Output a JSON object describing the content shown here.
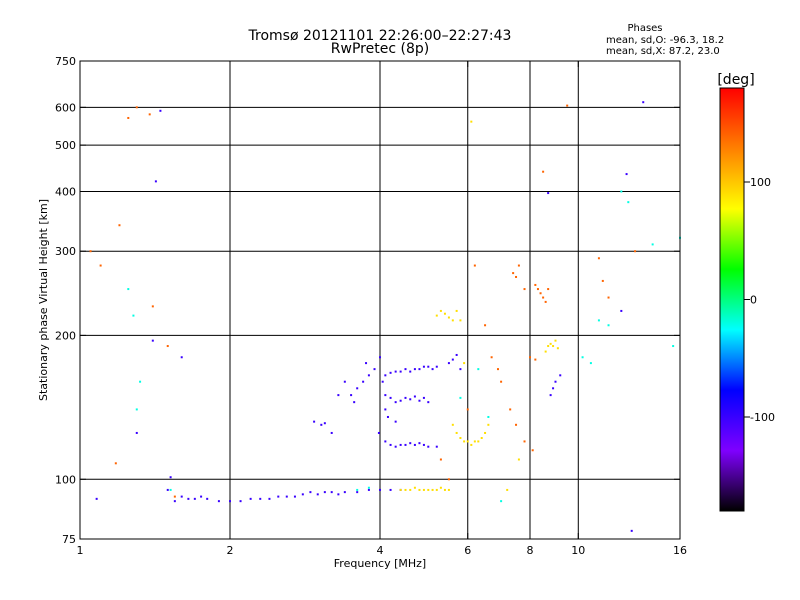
{
  "chart_data": {
    "type": "scatter",
    "title": "Tromsø 20121101 22:26:00–22:27:43",
    "subtitle": "RwPretec (8p)",
    "xlabel": "Frequency [MHz]",
    "ylabel": "Stationary phase Virtual Height [km]",
    "x_scale": "log",
    "y_scale": "log",
    "xlim": [
      1,
      16
    ],
    "ylim": [
      75,
      750
    ],
    "x_ticks": [
      1,
      2,
      4,
      6,
      8,
      10,
      16
    ],
    "y_ticks": [
      75,
      100,
      200,
      300,
      400,
      500,
      600,
      750
    ],
    "x_gridlines": [
      2,
      4,
      6,
      8,
      10
    ],
    "y_gridlines": [
      100,
      200,
      300,
      400,
      500,
      600
    ],
    "stats": {
      "header": "Phases",
      "line_o": "mean, sd,O: -96.3, 18.2",
      "line_x": "mean, sd,X:  87.2, 23.0"
    },
    "colorbar": {
      "label": "[deg]",
      "range": [
        -180,
        180
      ],
      "ticks": [
        100,
        0,
        -100
      ],
      "stops": [
        "#000000",
        "#7f00ff",
        "#0000ff",
        "#00ffff",
        "#00ff00",
        "#ffff00",
        "#ff8000",
        "#ff0000"
      ]
    },
    "series": [
      {
        "points": [
          [
            1.55,
            90
          ],
          [
            1.6,
            92
          ],
          [
            1.65,
            91
          ],
          [
            1.7,
            91
          ],
          [
            1.75,
            92
          ],
          [
            1.8,
            91
          ],
          [
            1.9,
            90
          ],
          [
            2.0,
            90
          ],
          [
            2.1,
            90
          ],
          [
            2.2,
            91
          ],
          [
            2.3,
            91
          ],
          [
            2.4,
            91
          ],
          [
            2.5,
            92
          ],
          [
            2.6,
            92
          ],
          [
            2.7,
            92
          ],
          [
            2.8,
            93
          ],
          [
            2.9,
            94
          ],
          [
            3.0,
            93
          ],
          [
            3.1,
            94
          ],
          [
            3.2,
            94
          ],
          [
            3.3,
            93
          ],
          [
            3.4,
            94
          ],
          [
            3.6,
            94
          ],
          [
            3.8,
            95
          ],
          [
            4.0,
            95
          ],
          [
            4.2,
            95
          ],
          [
            4.4,
            95
          ],
          [
            1.5,
            95
          ],
          [
            1.52,
            101
          ],
          [
            1.08,
            91
          ],
          [
            2.95,
            132
          ],
          [
            3.05,
            130
          ],
          [
            3.1,
            131
          ],
          [
            3.2,
            125
          ],
          [
            3.3,
            150
          ],
          [
            3.4,
            160
          ],
          [
            3.5,
            150
          ],
          [
            3.55,
            145
          ],
          [
            3.6,
            155
          ],
          [
            3.7,
            160
          ],
          [
            3.75,
            175
          ],
          [
            3.8,
            165
          ],
          [
            3.9,
            170
          ],
          [
            4.0,
            180
          ],
          [
            4.05,
            160
          ],
          [
            4.1,
            165
          ],
          [
            4.2,
            167
          ],
          [
            4.3,
            168
          ],
          [
            4.4,
            168
          ],
          [
            4.5,
            170
          ],
          [
            4.6,
            168
          ],
          [
            4.7,
            170
          ],
          [
            4.8,
            170
          ],
          [
            4.9,
            172
          ],
          [
            5.0,
            172
          ],
          [
            5.1,
            170
          ],
          [
            5.2,
            172
          ],
          [
            4.1,
            150
          ],
          [
            4.2,
            148
          ],
          [
            4.3,
            145
          ],
          [
            4.4,
            146
          ],
          [
            4.5,
            148
          ],
          [
            4.6,
            147
          ],
          [
            4.7,
            149
          ],
          [
            4.8,
            146
          ],
          [
            4.9,
            148
          ],
          [
            5.0,
            145
          ],
          [
            4.1,
            120
          ],
          [
            4.2,
            118
          ],
          [
            4.3,
            117
          ],
          [
            4.4,
            118
          ],
          [
            4.5,
            118
          ],
          [
            4.6,
            119
          ],
          [
            4.7,
            118
          ],
          [
            4.8,
            119
          ],
          [
            4.9,
            118
          ],
          [
            5.0,
            117
          ],
          [
            5.2,
            117
          ],
          [
            5.5,
            175
          ],
          [
            5.6,
            178
          ],
          [
            5.7,
            182
          ],
          [
            5.8,
            170
          ],
          [
            8.7,
            397
          ],
          [
            12.5,
            435
          ],
          [
            13.5,
            615
          ],
          [
            12.2,
            225
          ],
          [
            8.8,
            150
          ],
          [
            8.9,
            155
          ],
          [
            9.0,
            160
          ],
          [
            9.2,
            165
          ],
          [
            4.1,
            140
          ],
          [
            4.15,
            135
          ],
          [
            4.3,
            132
          ],
          [
            3.98,
            125
          ],
          [
            1.4,
            195
          ],
          [
            1.3,
            125
          ],
          [
            1.6,
            180
          ],
          [
            1.45,
            590
          ],
          [
            1.42,
            420
          ],
          [
            12.8,
            78
          ]
        ],
        "value": -100
      },
      {
        "points": [
          [
            4.4,
            95
          ],
          [
            4.5,
            95
          ],
          [
            4.6,
            95
          ],
          [
            4.7,
            96
          ],
          [
            4.8,
            95
          ],
          [
            4.9,
            95
          ],
          [
            5.0,
            95
          ],
          [
            5.1,
            95
          ],
          [
            5.2,
            95
          ],
          [
            5.3,
            96
          ],
          [
            5.4,
            95
          ],
          [
            5.5,
            95
          ],
          [
            5.2,
            220
          ],
          [
            5.3,
            225
          ],
          [
            5.4,
            222
          ],
          [
            5.5,
            218
          ],
          [
            5.6,
            215
          ],
          [
            5.7,
            225
          ],
          [
            5.8,
            215
          ],
          [
            5.9,
            175
          ],
          [
            5.6,
            130
          ],
          [
            5.7,
            125
          ],
          [
            5.8,
            122
          ],
          [
            5.9,
            120
          ],
          [
            6.0,
            120
          ],
          [
            6.1,
            118
          ],
          [
            6.2,
            120
          ],
          [
            6.3,
            120
          ],
          [
            6.4,
            122
          ],
          [
            6.5,
            125
          ],
          [
            6.6,
            130
          ],
          [
            8.6,
            185
          ],
          [
            8.7,
            190
          ],
          [
            8.8,
            192
          ],
          [
            8.9,
            190
          ],
          [
            9.0,
            195
          ],
          [
            9.1,
            188
          ],
          [
            6.1,
            560
          ],
          [
            7.2,
            95
          ],
          [
            7.6,
            110
          ]
        ],
        "value": 90
      },
      {
        "points": [
          [
            1.05,
            300
          ],
          [
            1.1,
            280
          ],
          [
            1.2,
            340
          ],
          [
            1.3,
            600
          ],
          [
            1.25,
            570
          ],
          [
            1.38,
            580
          ],
          [
            1.18,
            108
          ],
          [
            1.55,
            92
          ],
          [
            1.4,
            230
          ],
          [
            1.5,
            190
          ],
          [
            8.2,
            255
          ],
          [
            8.3,
            250
          ],
          [
            8.4,
            245
          ],
          [
            8.5,
            240
          ],
          [
            8.6,
            235
          ],
          [
            8.7,
            250
          ],
          [
            7.4,
            270
          ],
          [
            7.5,
            265
          ],
          [
            7.6,
            280
          ],
          [
            7.8,
            250
          ],
          [
            6.5,
            210
          ],
          [
            6.7,
            180
          ],
          [
            6.9,
            170
          ],
          [
            7.0,
            160
          ],
          [
            7.3,
            140
          ],
          [
            7.5,
            130
          ],
          [
            7.8,
            120
          ],
          [
            8.1,
            115
          ],
          [
            8.0,
            180
          ],
          [
            8.2,
            178
          ],
          [
            8.5,
            440
          ],
          [
            9.5,
            605
          ],
          [
            11.0,
            290
          ],
          [
            11.2,
            260
          ],
          [
            11.5,
            240
          ],
          [
            13.0,
            300
          ],
          [
            6.2,
            280
          ],
          [
            6.0,
            140
          ],
          [
            5.5,
            100
          ],
          [
            5.3,
            110
          ]
        ],
        "value": 140
      },
      {
        "points": [
          [
            1.3,
            140
          ],
          [
            1.32,
            160
          ],
          [
            1.28,
            220
          ],
          [
            1.25,
            250
          ],
          [
            1.52,
            95
          ],
          [
            3.6,
            95
          ],
          [
            3.8,
            96
          ],
          [
            5.8,
            148
          ],
          [
            6.3,
            170
          ],
          [
            6.6,
            135
          ],
          [
            7.0,
            90
          ],
          [
            10.2,
            180
          ],
          [
            10.6,
            175
          ],
          [
            11.0,
            215
          ],
          [
            11.5,
            210
          ],
          [
            12.2,
            400
          ],
          [
            12.6,
            380
          ],
          [
            14.1,
            310
          ],
          [
            15.5,
            190
          ],
          [
            16.0,
            320
          ]
        ],
        "value": -20
      }
    ]
  }
}
